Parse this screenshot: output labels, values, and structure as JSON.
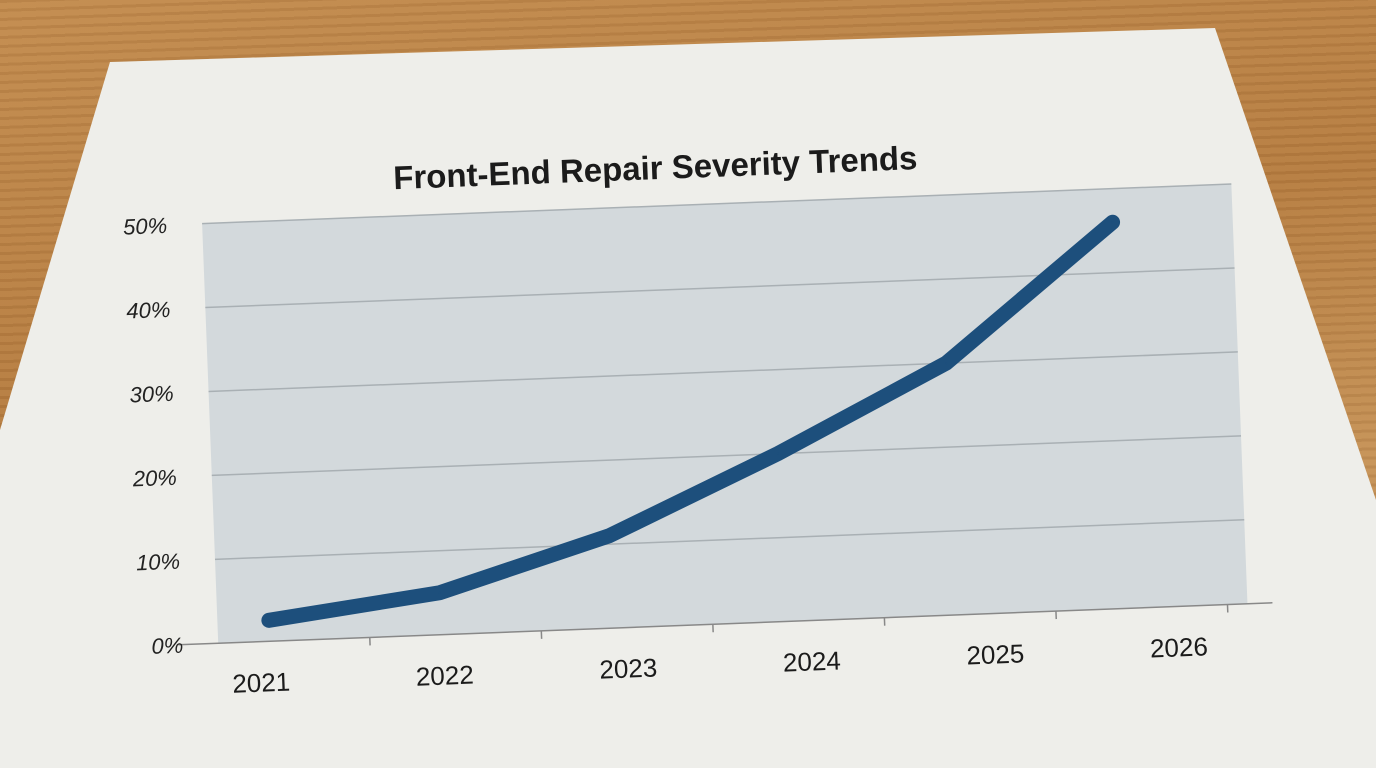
{
  "chart_data": {
    "type": "line",
    "title": "Front-End Repair Severity Trends",
    "xlabel": "",
    "ylabel": "",
    "categories": [
      "2021",
      "2022",
      "2023",
      "2024",
      "2025",
      "2026"
    ],
    "values": [
      2.5,
      5,
      11,
      20,
      30,
      46
    ],
    "y_unit": "%",
    "ylim": [
      0,
      50
    ],
    "yticks": [
      "0%",
      "10%",
      "20%",
      "30%",
      "40%",
      "50%"
    ],
    "grid": true,
    "line_color": "#1d4f7c",
    "plot_background": "#d3d9dc",
    "legend": "none"
  }
}
